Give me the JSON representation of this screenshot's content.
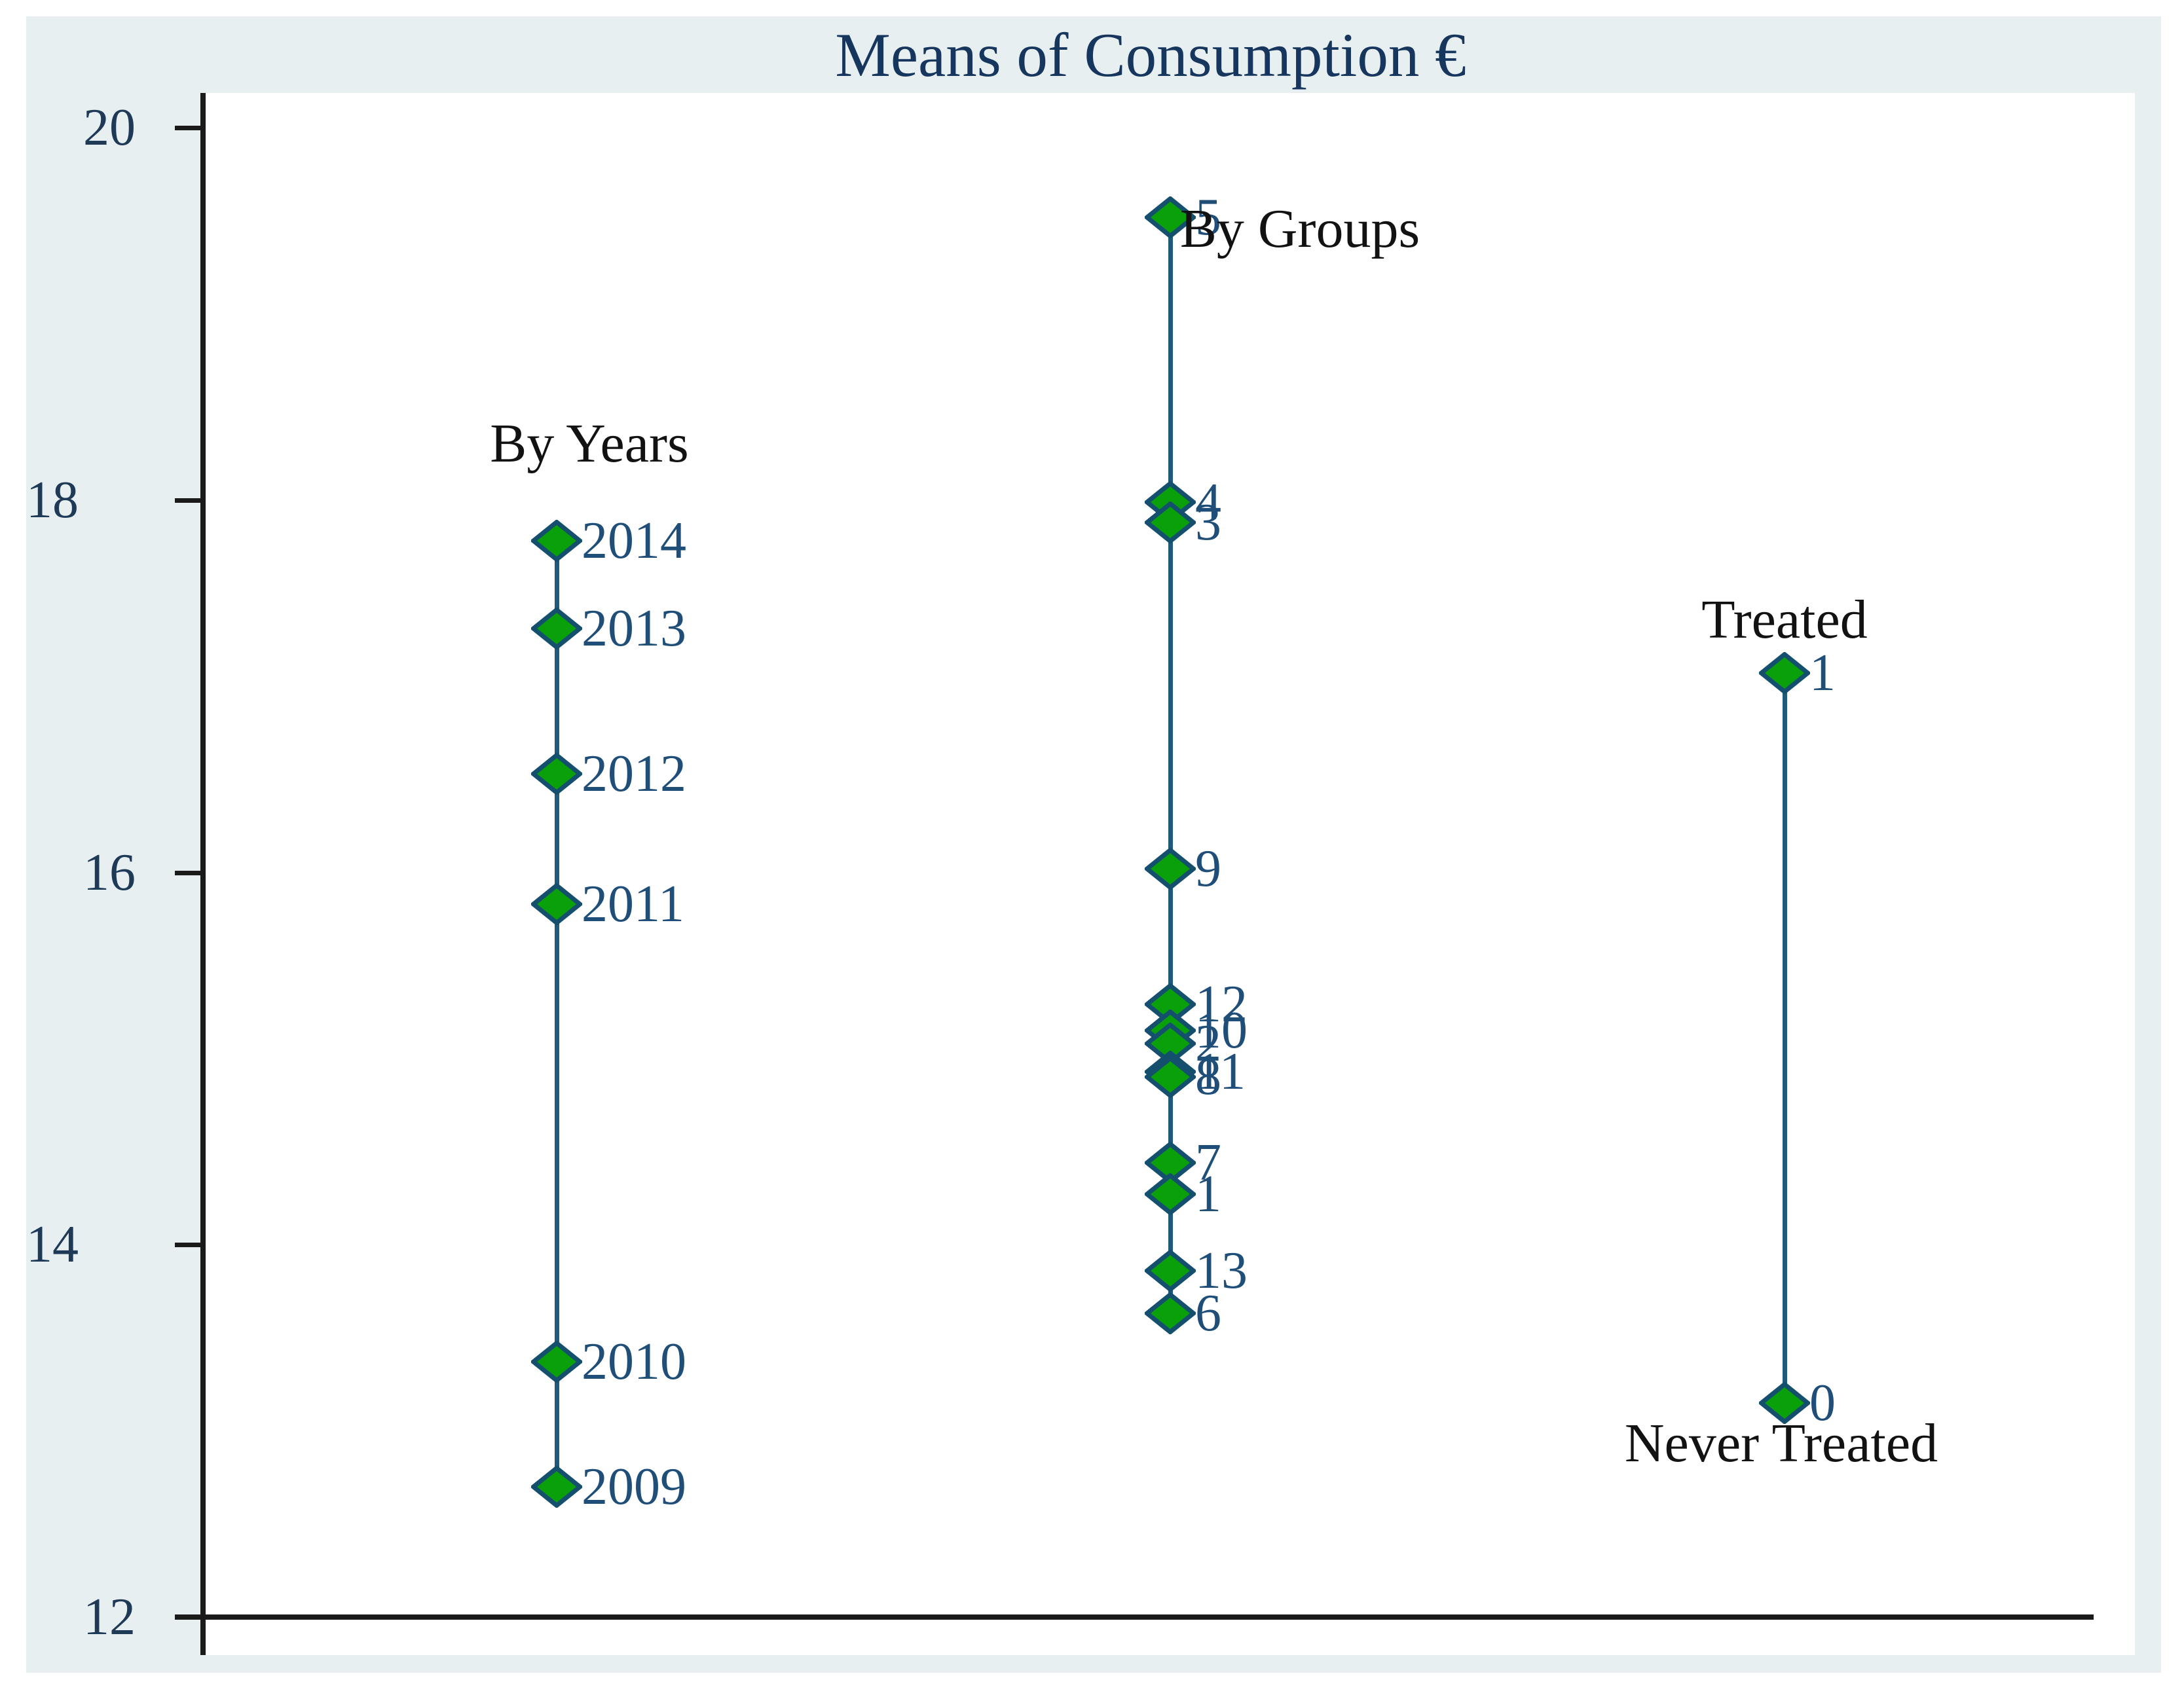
{
  "title": "Means of Consumption €",
  "annotations": {
    "by_years": "By Years",
    "by_groups": "By Groups",
    "treated": "Treated",
    "never_treated": "Never Treated"
  },
  "colors": {
    "panel_bg": "#e7eff1",
    "plot_bg": "#ffffff",
    "axis": "#1a1a1a",
    "marker_fill": "#0aa00a",
    "marker_stroke": "#14506e",
    "series_line": "#1f5a7d",
    "value_text": "#1f4e79",
    "annotation_text": "#121212",
    "title_text": "#17365d"
  },
  "chart_data": {
    "type": "scatter",
    "title": "Means of Consumption €",
    "ylabel": "",
    "xlabel": "",
    "ylim": [
      12,
      20
    ],
    "y_ticks": [
      20,
      18,
      16,
      14,
      12
    ],
    "grid": false,
    "marker": "diamond",
    "series": [
      {
        "name": "By Years",
        "points": [
          {
            "label": "2014",
            "value": 17.78
          },
          {
            "label": "2013",
            "value": 17.31
          },
          {
            "label": "2012",
            "value": 16.53
          },
          {
            "label": "2011",
            "value": 15.83
          },
          {
            "label": "2010",
            "value": 13.37
          },
          {
            "label": "2009",
            "value": 12.7
          }
        ]
      },
      {
        "name": "By Groups",
        "points": [
          {
            "label": "5",
            "value": 19.52
          },
          {
            "label": "4",
            "value": 17.99
          },
          {
            "label": "3",
            "value": 17.88
          },
          {
            "label": "9",
            "value": 16.02
          },
          {
            "label": "12",
            "value": 15.29
          },
          {
            "label": "10",
            "value": 15.15
          },
          {
            "label": "2",
            "value": 15.08
          },
          {
            "label": "11",
            "value": 14.93
          },
          {
            "label": "8",
            "value": 14.9
          },
          {
            "label": "7",
            "value": 14.44
          },
          {
            "label": "1",
            "value": 14.27
          },
          {
            "label": "13",
            "value": 13.86
          },
          {
            "label": "6",
            "value": 13.63
          }
        ]
      },
      {
        "name": "Treated",
        "points": [
          {
            "label": "1",
            "value": 17.07
          },
          {
            "label": "0",
            "value": 13.15
          }
        ]
      }
    ]
  }
}
